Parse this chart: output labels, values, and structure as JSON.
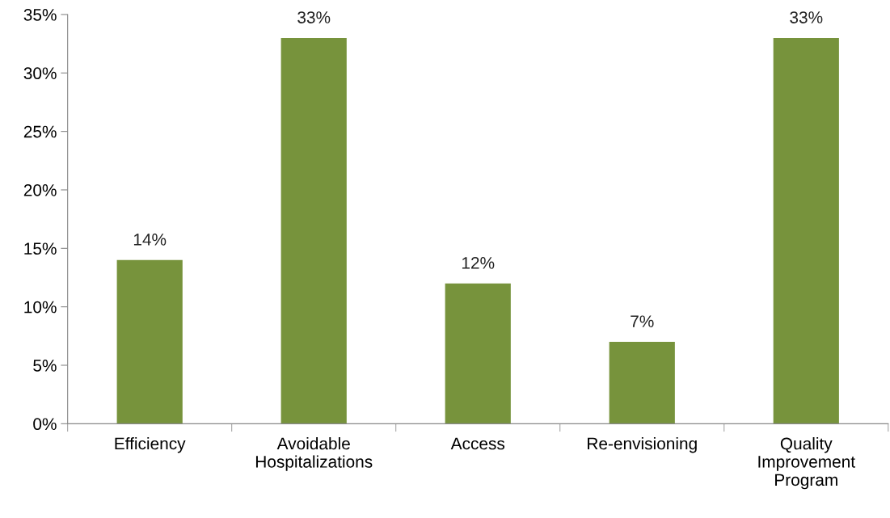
{
  "chart_data": {
    "type": "bar",
    "categories": [
      "Efficiency",
      "Avoidable\nHospitalizations",
      "Access",
      "Re-envisioning",
      "Quality\nImprovement\nProgram"
    ],
    "values": [
      14,
      33,
      12,
      7,
      33
    ],
    "value_labels": [
      "14%",
      "33%",
      "12%",
      "7%",
      "33%"
    ],
    "color": "#77933c",
    "ylim": [
      0,
      35
    ],
    "yticks": [
      {
        "value": 0,
        "label": "0%"
      },
      {
        "value": 5,
        "label": "5%"
      },
      {
        "value": 10,
        "label": "10%"
      },
      {
        "value": 15,
        "label": "15%"
      },
      {
        "value": 20,
        "label": "20%"
      },
      {
        "value": 25,
        "label": "25%"
      },
      {
        "value": 30,
        "label": "30%"
      },
      {
        "value": 35,
        "label": "35%"
      }
    ],
    "grid": false
  }
}
